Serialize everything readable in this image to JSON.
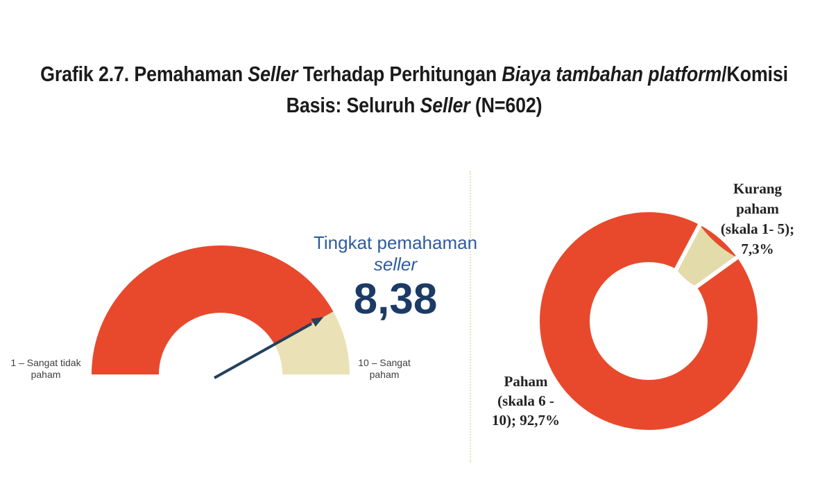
{
  "title": {
    "line1_runs": [
      {
        "text": "Grafik 2.7. Pemahaman ",
        "italic": false
      },
      {
        "text": "Seller",
        "italic": true
      },
      {
        "text": " Terhadap Perhitungan ",
        "italic": false
      },
      {
        "text": "Biaya tambahan platform",
        "italic": true
      },
      {
        "text": "/Komisi",
        "italic": false
      }
    ],
    "line2_runs": [
      {
        "text": "Basis: Seluruh ",
        "italic": false
      },
      {
        "text": "Seller",
        "italic": true
      },
      {
        "text": " (N=602)",
        "italic": false
      }
    ]
  },
  "gauge": {
    "heading_line1": "Tingkat pemahaman",
    "heading_line2": "seller",
    "value_label": "8,38",
    "min_label_line1": "1 – Sangat tidak",
    "min_label_line2": "paham",
    "max_label_line1": "10 – Sangat",
    "max_label_line2": "paham"
  },
  "donut": {
    "kurang_label_lines": [
      "Kurang",
      "paham",
      "(skala 1- 5);",
      "7,3%"
    ],
    "paham_label_lines": [
      "Paham",
      "(skala 6 -",
      "10); 92,7%"
    ]
  },
  "colors": {
    "red": "#E8492C",
    "cream_gauge": "#EAE2B6",
    "cream_donut": "#E3DBAA",
    "heading_blue": "#2E5B9E",
    "value_navy": "#1C3A66",
    "needle_navy": "#24405E",
    "divider_tan": "#EADFC3",
    "title_black": "#1B1B1B",
    "gauge_label_gray": "#3E3E3E",
    "donut_label_dark": "#222222"
  },
  "chart_data": [
    {
      "type": "gauge",
      "title": "Tingkat pemahaman seller",
      "value": 8.38,
      "value_label": "8,38",
      "scale_min": 1,
      "scale_max": 10,
      "min_tick_label": "1 – Sangat tidak paham",
      "max_tick_label": "10 – Sangat paham",
      "segments": [
        {
          "name": "tingkat-pemahaman",
          "from_value": 0,
          "to_value": 8.38,
          "color": "#E8492C"
        },
        {
          "name": "sisa-skala",
          "from_value": 8.38,
          "to_value": 10,
          "color": "#EAE2B6"
        }
      ],
      "needle": {
        "points_to_value": 8.38,
        "color": "#24405E"
      }
    },
    {
      "type": "pie",
      "subtype": "donut",
      "slices": [
        {
          "category": "Paham (skala 6 - 10)",
          "label": "Paham (skala 6 - 10); 92,7%",
          "value_pct": 92.7,
          "color": "#E8492C"
        },
        {
          "category": "Kurang paham (skala 1- 5)",
          "label": "Kurang paham (skala 1- 5); 7,3%",
          "value_pct": 7.3,
          "color": "#E3DBAA"
        }
      ],
      "layout": {
        "small_slice_start_angle_deg": 28,
        "hole_ratio": 0.54,
        "slice_gap_white": true,
        "legend": "none",
        "labels": "outside"
      }
    }
  ]
}
